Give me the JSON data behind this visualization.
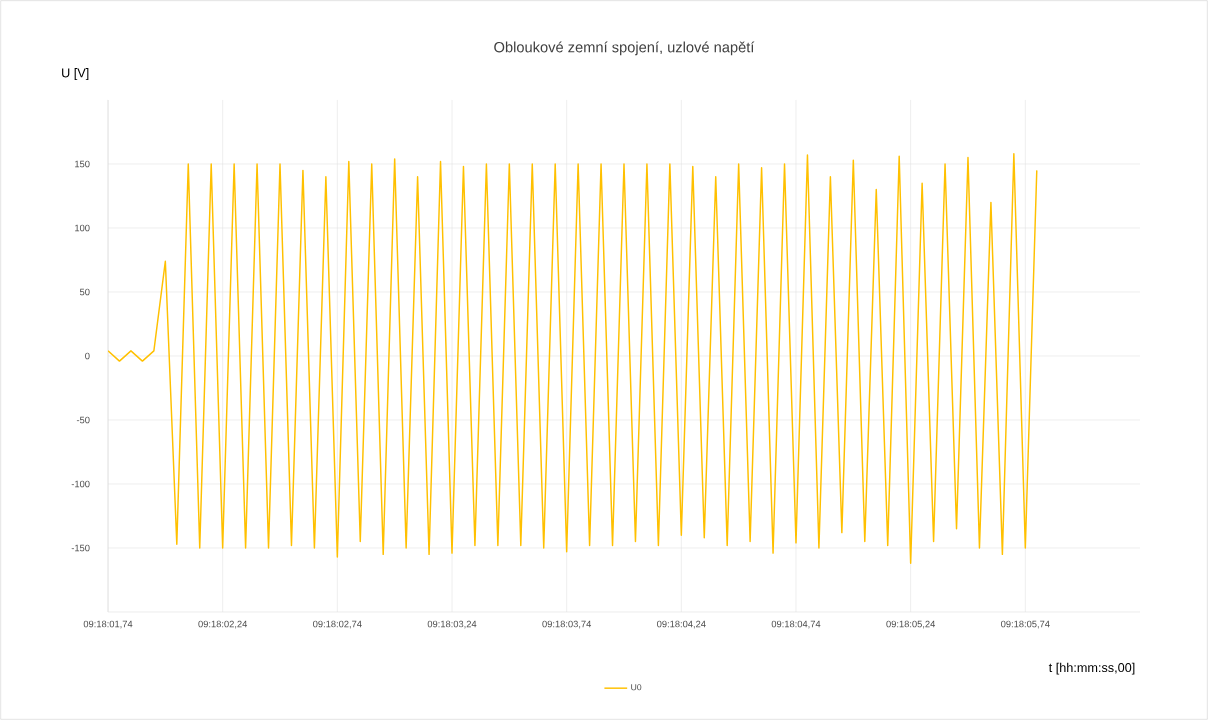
{
  "chart_data": {
    "type": "line",
    "title": "Obloukové zemní spojení, uzlové napětí",
    "xlabel": "t [hh:mm:ss,00]",
    "ylabel": "U [V]",
    "categories": [
      "09:18:01,74",
      null,
      null,
      null,
      null,
      null,
      null,
      null,
      null,
      null,
      "09:18:02,24",
      null,
      null,
      null,
      null,
      null,
      null,
      null,
      null,
      null,
      "09:18:02,74",
      null,
      null,
      null,
      null,
      null,
      null,
      null,
      null,
      null,
      "09:18:03,24",
      null,
      null,
      null,
      null,
      null,
      null,
      null,
      null,
      null,
      "09:18:03,74",
      null,
      null,
      null,
      null,
      null,
      null,
      null,
      null,
      null,
      "09:18:04,24",
      null,
      null,
      null,
      null,
      null,
      null,
      null,
      null,
      null,
      "09:18:04,74",
      null,
      null,
      null,
      null,
      null,
      null,
      null,
      null,
      null,
      "09:18:05,24",
      null,
      null,
      null,
      null,
      null,
      null,
      null,
      null,
      null,
      "09:18:05,74",
      null,
      null,
      null,
      null,
      null,
      null,
      null,
      null,
      null,
      null
    ],
    "series": [
      {
        "name": "U0",
        "color": "#ffc000",
        "values": [
          4,
          -4,
          4,
          -4,
          4,
          74,
          -147,
          150,
          -150,
          150,
          -150,
          150,
          -150,
          150,
          -150,
          150,
          -148,
          145,
          -150,
          140,
          -157,
          152,
          -145,
          150,
          -155,
          154,
          -150,
          140,
          -155,
          152,
          -154,
          148,
          -148,
          150,
          -148,
          150,
          -148,
          150,
          -150,
          150,
          -153,
          150,
          -148,
          150,
          -148,
          150,
          -145,
          150,
          -148,
          150,
          -140,
          148,
          -142,
          140,
          -148,
          150,
          -145,
          147,
          -154,
          150,
          -146,
          157,
          -150,
          140,
          -138,
          153,
          -145,
          130,
          -148,
          156,
          -162,
          135,
          -145,
          150,
          -135,
          155,
          -150,
          120,
          -155,
          158,
          -150,
          145,
          null,
          null,
          null,
          null,
          null,
          null,
          null,
          null,
          null
        ]
      }
    ],
    "ylim": [
      -200,
      200
    ],
    "yticks": [
      -150,
      -100,
      -50,
      0,
      50,
      100,
      150
    ],
    "grid": true,
    "legend": "bottom",
    "marker": "none",
    "line_style": "solid"
  }
}
